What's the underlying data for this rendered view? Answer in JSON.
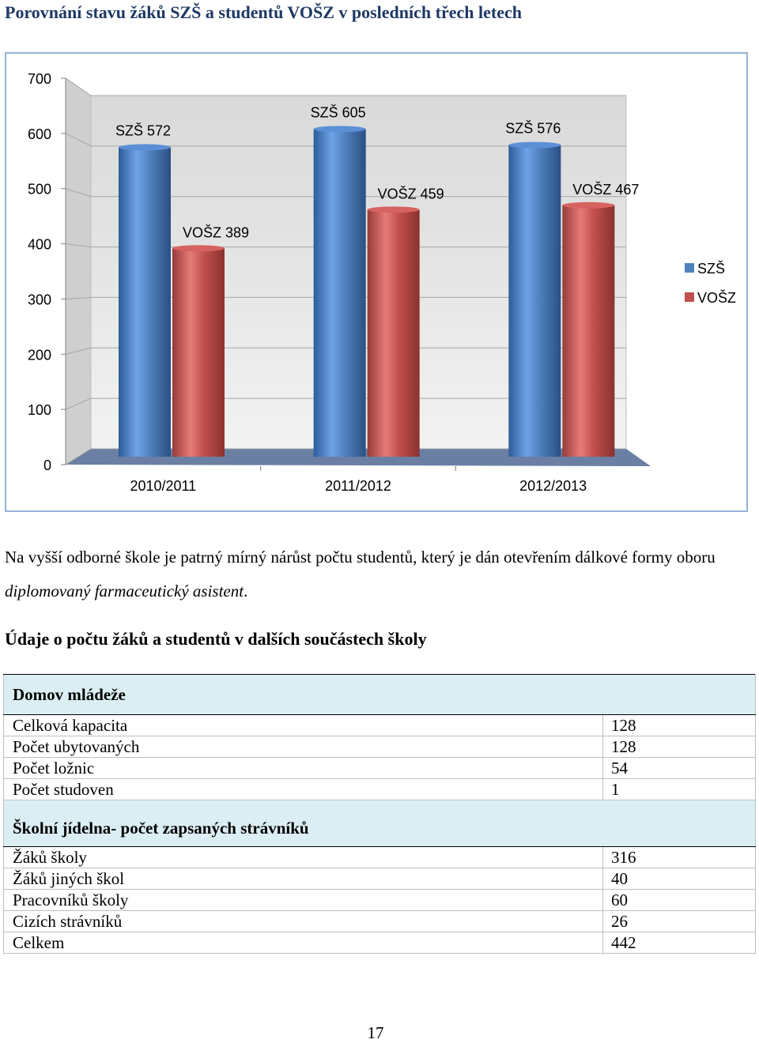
{
  "page": {
    "heading": "Porovnání stavu žáků SZŠ a studentů VOŠZ v posledních třech letech",
    "paragraph_part1": "Na vyšší odborné škole je patrný mírný nárůst počtu studentů, který je dán otevřením dálkové formy oboru ",
    "paragraph_italic": "diplomovaný farmaceutický asistent",
    "paragraph_end": ".",
    "section_heading": "Údaje o počtu žáků a studentů v dalších součástech školy",
    "page_number": "17"
  },
  "chart_data": {
    "type": "bar",
    "categories": [
      "2010/2011",
      "2011/2012",
      "2012/2013"
    ],
    "series": [
      {
        "name": "SZŠ",
        "values": [
          572,
          605,
          576
        ],
        "color": "#4f81bd",
        "labels": [
          "SZŠ 572",
          "SZŠ 605",
          "SZŠ 576"
        ]
      },
      {
        "name": "VOŠZ",
        "values": [
          389,
          459,
          467
        ],
        "color": "#c0504d",
        "labels": [
          "VOŠZ 389",
          "VOŠZ 459",
          "VOŠZ 467"
        ]
      }
    ],
    "yticks": [
      "0",
      "100",
      "200",
      "300",
      "400",
      "500",
      "600",
      "700"
    ],
    "ylim": [
      0,
      700
    ],
    "legend": "right",
    "style": "3d"
  },
  "table": {
    "sections": [
      {
        "title": "Domov mládeže",
        "rows": [
          {
            "label": "Celková kapacita",
            "value": "128"
          },
          {
            "label": "Počet ubytovaných",
            "value": "128"
          },
          {
            "label": "Počet ložnic",
            "value": "54"
          },
          {
            "label": "Počet studoven",
            "value": "1"
          }
        ]
      },
      {
        "title": "Školní jídelna- počet zapsaných strávníků",
        "rows": [
          {
            "label": "Žáků školy",
            "value": "316"
          },
          {
            "label": "Žáků jiných škol",
            "value": "40"
          },
          {
            "label": "Pracovníků školy",
            "value": "60"
          },
          {
            "label": "Cizích strávníků",
            "value": "26"
          },
          {
            "label": "Celkem",
            "value": "442"
          }
        ]
      }
    ]
  }
}
